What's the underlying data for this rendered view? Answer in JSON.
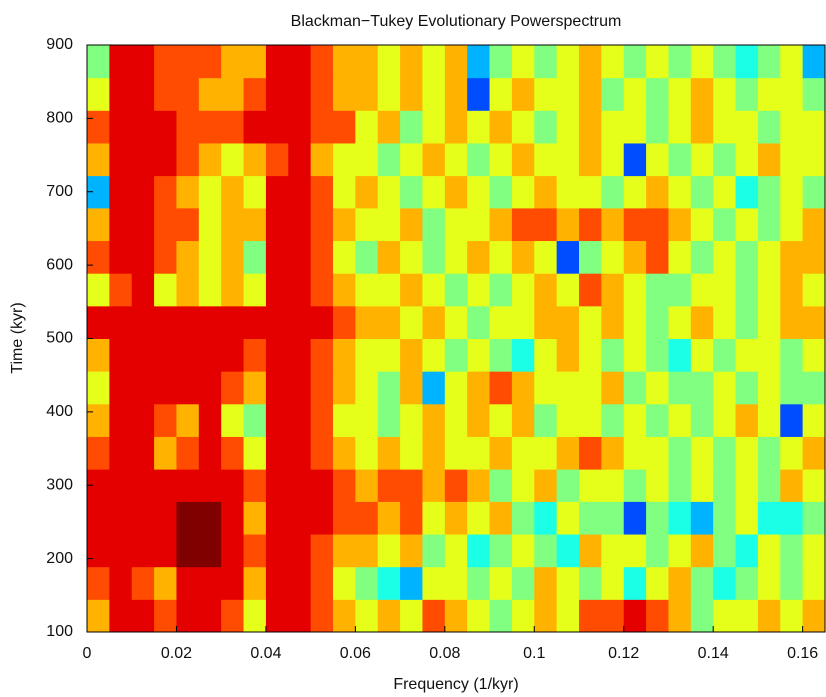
{
  "chart_data": {
    "type": "heatmap",
    "title": "Blackman−Tukey Evolutionary Powerspectrum",
    "x_label": "Frequency (1/kyr)",
    "y_label": "Time (kyr)",
    "xlim": [
      0,
      0.165
    ],
    "ylim": [
      100,
      900
    ],
    "xticks": [
      0,
      0.02,
      0.04,
      0.06,
      0.08,
      0.1,
      0.12,
      0.14,
      0.16
    ],
    "yticks": [
      100,
      200,
      300,
      400,
      500,
      600,
      700,
      800,
      900
    ],
    "colormap": "jet",
    "zlim": [
      0,
      10
    ],
    "x": [
      0.0025,
      0.0075,
      0.0125,
      0.0175,
      0.0225,
      0.0275,
      0.0325,
      0.0375,
      0.0425,
      0.0475,
      0.0525,
      0.0575,
      0.0625,
      0.0675,
      0.0725,
      0.0775,
      0.0825,
      0.0875,
      0.0925,
      0.0975,
      0.1025,
      0.1075,
      0.1125,
      0.1175,
      0.1225,
      0.1275,
      0.1325,
      0.1375,
      0.1425,
      0.1475,
      0.1525,
      0.1575,
      0.1625
    ],
    "y": [
      122,
      167,
      211,
      256,
      300,
      344,
      389,
      433,
      478,
      522,
      567,
      611,
      656,
      700,
      744,
      789,
      833,
      878
    ],
    "z": [
      [
        7,
        9,
        9,
        8,
        9,
        9,
        8,
        6,
        9,
        9,
        8,
        7,
        6,
        7,
        6,
        8,
        7,
        6,
        5,
        6,
        7,
        6,
        8,
        8,
        9,
        8,
        7,
        5,
        6,
        6,
        7,
        6,
        7
      ],
      [
        8,
        9,
        8,
        7,
        9,
        9,
        9,
        7,
        9,
        9,
        8,
        6,
        5,
        4,
        3,
        6,
        6,
        5,
        6,
        5,
        7,
        6,
        5,
        6,
        4,
        6,
        7,
        5,
        4,
        5,
        6,
        5,
        6
      ],
      [
        9,
        9,
        9,
        9,
        10,
        10,
        9,
        8,
        9,
        9,
        8,
        7,
        7,
        6,
        7,
        5,
        6,
        4,
        5,
        6,
        5,
        4,
        7,
        6,
        6,
        5,
        6,
        7,
        5,
        4,
        6,
        5,
        6
      ],
      [
        9,
        9,
        9,
        9,
        10,
        10,
        9,
        7,
        9,
        9,
        9,
        8,
        8,
        7,
        8,
        6,
        7,
        6,
        7,
        5,
        4,
        6,
        5,
        5,
        2,
        5,
        4,
        3,
        5,
        6,
        4,
        4,
        5
      ],
      [
        9,
        9,
        9,
        9,
        9,
        9,
        9,
        8,
        9,
        9,
        9,
        8,
        7,
        8,
        8,
        7,
        8,
        7,
        5,
        6,
        7,
        5,
        6,
        6,
        5,
        6,
        5,
        6,
        5,
        6,
        5,
        7,
        6
      ],
      [
        8,
        9,
        9,
        7,
        8,
        9,
        8,
        6,
        9,
        9,
        8,
        7,
        6,
        7,
        6,
        7,
        6,
        6,
        7,
        6,
        6,
        7,
        8,
        7,
        6,
        6,
        5,
        6,
        5,
        6,
        5,
        6,
        7
      ],
      [
        7,
        9,
        9,
        8,
        7,
        9,
        6,
        5,
        9,
        9,
        8,
        6,
        6,
        5,
        6,
        7,
        6,
        7,
        6,
        7,
        5,
        6,
        6,
        5,
        6,
        5,
        6,
        5,
        6,
        7,
        6,
        2,
        6
      ],
      [
        6,
        9,
        9,
        9,
        9,
        9,
        8,
        7,
        9,
        9,
        8,
        7,
        6,
        5,
        7,
        3,
        6,
        7,
        8,
        7,
        6,
        6,
        6,
        7,
        5,
        6,
        5,
        5,
        6,
        5,
        6,
        5,
        5
      ],
      [
        7,
        9,
        9,
        9,
        9,
        9,
        9,
        8,
        9,
        9,
        8,
        7,
        6,
        6,
        7,
        6,
        5,
        6,
        5,
        4,
        6,
        7,
        6,
        5,
        6,
        5,
        4,
        6,
        5,
        6,
        6,
        5,
        6
      ],
      [
        9,
        9,
        9,
        9,
        9,
        9,
        9,
        9,
        9,
        9,
        9,
        8,
        7,
        7,
        6,
        7,
        6,
        5,
        6,
        6,
        7,
        7,
        6,
        7,
        6,
        5,
        6,
        7,
        6,
        5,
        6,
        7,
        7
      ],
      [
        6,
        8,
        9,
        6,
        7,
        6,
        7,
        6,
        9,
        9,
        8,
        7,
        6,
        6,
        7,
        6,
        5,
        6,
        5,
        6,
        7,
        6,
        8,
        7,
        6,
        5,
        5,
        6,
        6,
        5,
        6,
        7,
        6
      ],
      [
        8,
        9,
        9,
        8,
        7,
        6,
        7,
        5,
        9,
        9,
        8,
        6,
        5,
        7,
        6,
        5,
        6,
        7,
        6,
        7,
        6,
        2,
        5,
        6,
        7,
        8,
        6,
        5,
        6,
        5,
        6,
        7,
        7
      ],
      [
        7,
        9,
        9,
        8,
        8,
        6,
        7,
        7,
        9,
        9,
        8,
        7,
        6,
        6,
        7,
        5,
        6,
        6,
        7,
        8,
        8,
        7,
        8,
        7,
        8,
        8,
        7,
        6,
        5,
        6,
        5,
        6,
        7
      ],
      [
        3,
        9,
        9,
        8,
        7,
        6,
        7,
        6,
        9,
        9,
        8,
        6,
        7,
        6,
        5,
        6,
        7,
        6,
        5,
        6,
        7,
        6,
        6,
        5,
        6,
        7,
        6,
        5,
        6,
        4,
        5,
        6,
        5
      ],
      [
        7,
        9,
        9,
        9,
        8,
        7,
        6,
        7,
        8,
        9,
        7,
        6,
        6,
        5,
        6,
        7,
        6,
        5,
        6,
        7,
        6,
        6,
        7,
        6,
        2,
        6,
        5,
        6,
        5,
        6,
        7,
        6,
        6
      ],
      [
        8,
        9,
        9,
        9,
        8,
        8,
        8,
        9,
        9,
        9,
        8,
        8,
        6,
        7,
        5,
        6,
        7,
        6,
        7,
        6,
        5,
        6,
        7,
        6,
        6,
        5,
        6,
        7,
        6,
        6,
        5,
        6,
        6
      ],
      [
        6,
        9,
        9,
        8,
        8,
        7,
        7,
        8,
        9,
        9,
        8,
        7,
        7,
        6,
        7,
        6,
        7,
        2,
        6,
        7,
        6,
        6,
        7,
        5,
        6,
        5,
        6,
        7,
        6,
        5,
        6,
        6,
        5
      ],
      [
        5,
        9,
        9,
        8,
        8,
        8,
        7,
        7,
        9,
        9,
        8,
        7,
        7,
        6,
        7,
        6,
        7,
        3,
        5,
        6,
        5,
        6,
        7,
        6,
        5,
        6,
        5,
        6,
        5,
        4,
        5,
        6,
        3
      ]
    ]
  }
}
